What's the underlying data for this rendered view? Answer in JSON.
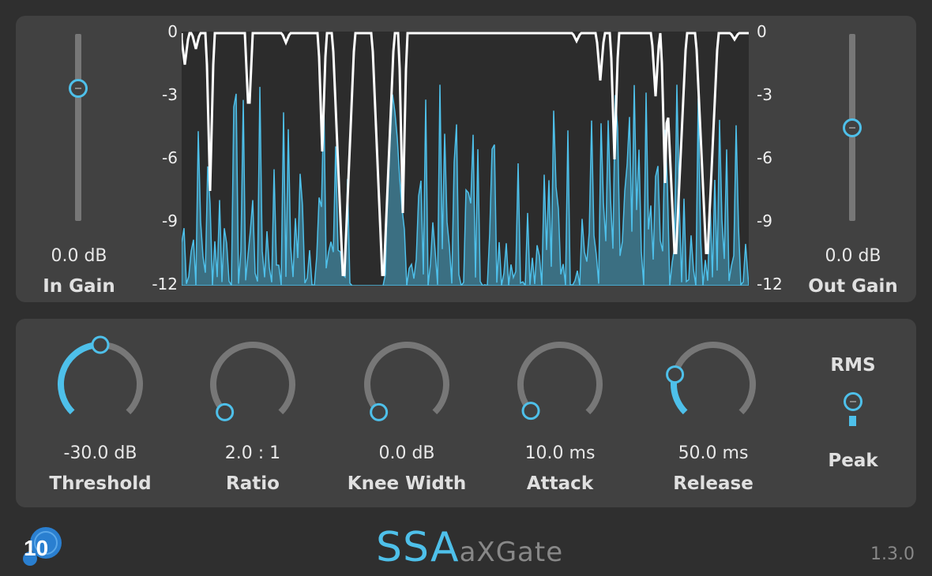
{
  "in_gain": {
    "value": "0.0 dB",
    "label": "In Gain",
    "level": 0.71
  },
  "out_gain": {
    "value": "0.0 dB",
    "label": "Out Gain",
    "level": 0.5
  },
  "meter": {
    "scale": [
      "0",
      "-3",
      "-6",
      "-9",
      "-12"
    ]
  },
  "knobs": [
    {
      "label": "Threshold",
      "value": "-30.0 dB",
      "position": 0.5
    },
    {
      "label": "Ratio",
      "value": "2.0 : 1",
      "position": 0.0
    },
    {
      "label": "Knee Width",
      "value": "0.0 dB",
      "position": 0.0
    },
    {
      "label": "Attack",
      "value": "10.0 ms",
      "position": 0.01
    },
    {
      "label": "Release",
      "value": "50.0 ms",
      "position": 0.22
    }
  ],
  "detector": {
    "top_label": "RMS",
    "bottom_label": "Peak",
    "selected": "Peak"
  },
  "footer": {
    "brand_accent": "SSA",
    "brand_rest": "aXGate",
    "version": "1.3.0",
    "logo_text": "10"
  },
  "colors": {
    "accent": "#4ec0ea",
    "track": "#777777",
    "panel": "#414141",
    "background": "#2f2f2f"
  }
}
